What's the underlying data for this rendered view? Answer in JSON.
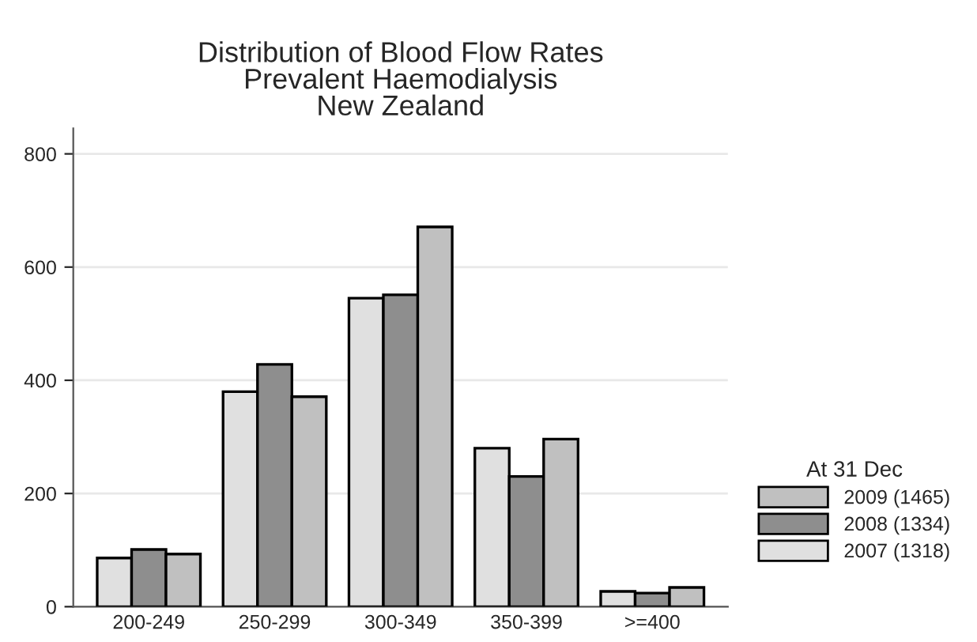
{
  "chart_data": {
    "type": "bar",
    "title": "Distribution of Blood Flow Rates\nPrevalent Haemodialysis\nNew Zealand",
    "categories": [
      "200-249",
      "250-299",
      "300-349",
      "350-399",
      ">=400"
    ],
    "series": [
      {
        "name": "2007 (1318)",
        "color": "#e0e0e0",
        "values": [
          86,
          380,
          545,
          280,
          27
        ]
      },
      {
        "name": "2008 (1334)",
        "color": "#8e8e8e",
        "values": [
          101,
          428,
          551,
          230,
          24
        ]
      },
      {
        "name": "2009 (1465)",
        "color": "#c0c0c0",
        "values": [
          93,
          371,
          671,
          296,
          34
        ]
      }
    ],
    "legend_title": "At 31 Dec",
    "legend": "right",
    "ylim": [
      0,
      845
    ],
    "yticks": [
      0,
      200,
      400,
      600,
      800
    ],
    "grid": "y"
  }
}
